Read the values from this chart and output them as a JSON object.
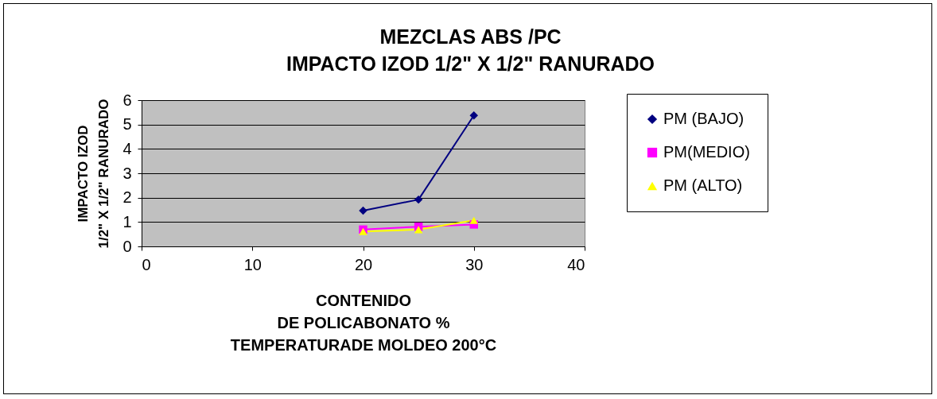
{
  "chart_data": {
    "type": "line",
    "title": "MEZCLAS ABS /PC\nIMPACTO IZOD 1/2\" X 1/2\" RANURADO",
    "xlabel": "CONTENIDO\nDE POLICABONATO %\nTEMPERATURADE MOLDEO 200°C",
    "ylabel": "IMPACTO IZOD\n1/2\" X 1/2\" RANURADO",
    "x": [
      20,
      25,
      30
    ],
    "series": [
      {
        "name": "PM (BAJO)",
        "color": "#000080",
        "marker": "diamond",
        "values": [
          1.47,
          1.92,
          5.37
        ]
      },
      {
        "name": "PM(MEDIO)",
        "color": "#ff00ff",
        "marker": "square",
        "values": [
          0.69,
          0.81,
          0.9
        ]
      },
      {
        "name": "PM (ALTO)",
        "color": "#ffff00",
        "marker": "triangle",
        "values": [
          0.61,
          0.69,
          1.07
        ]
      }
    ],
    "xlim": [
      0,
      40
    ],
    "xticks": [
      0,
      10,
      20,
      30,
      40
    ],
    "ylim": [
      0,
      6
    ],
    "yticks": [
      0,
      1,
      2,
      3,
      4,
      5,
      6
    ],
    "grid": "y",
    "legend": "right"
  }
}
